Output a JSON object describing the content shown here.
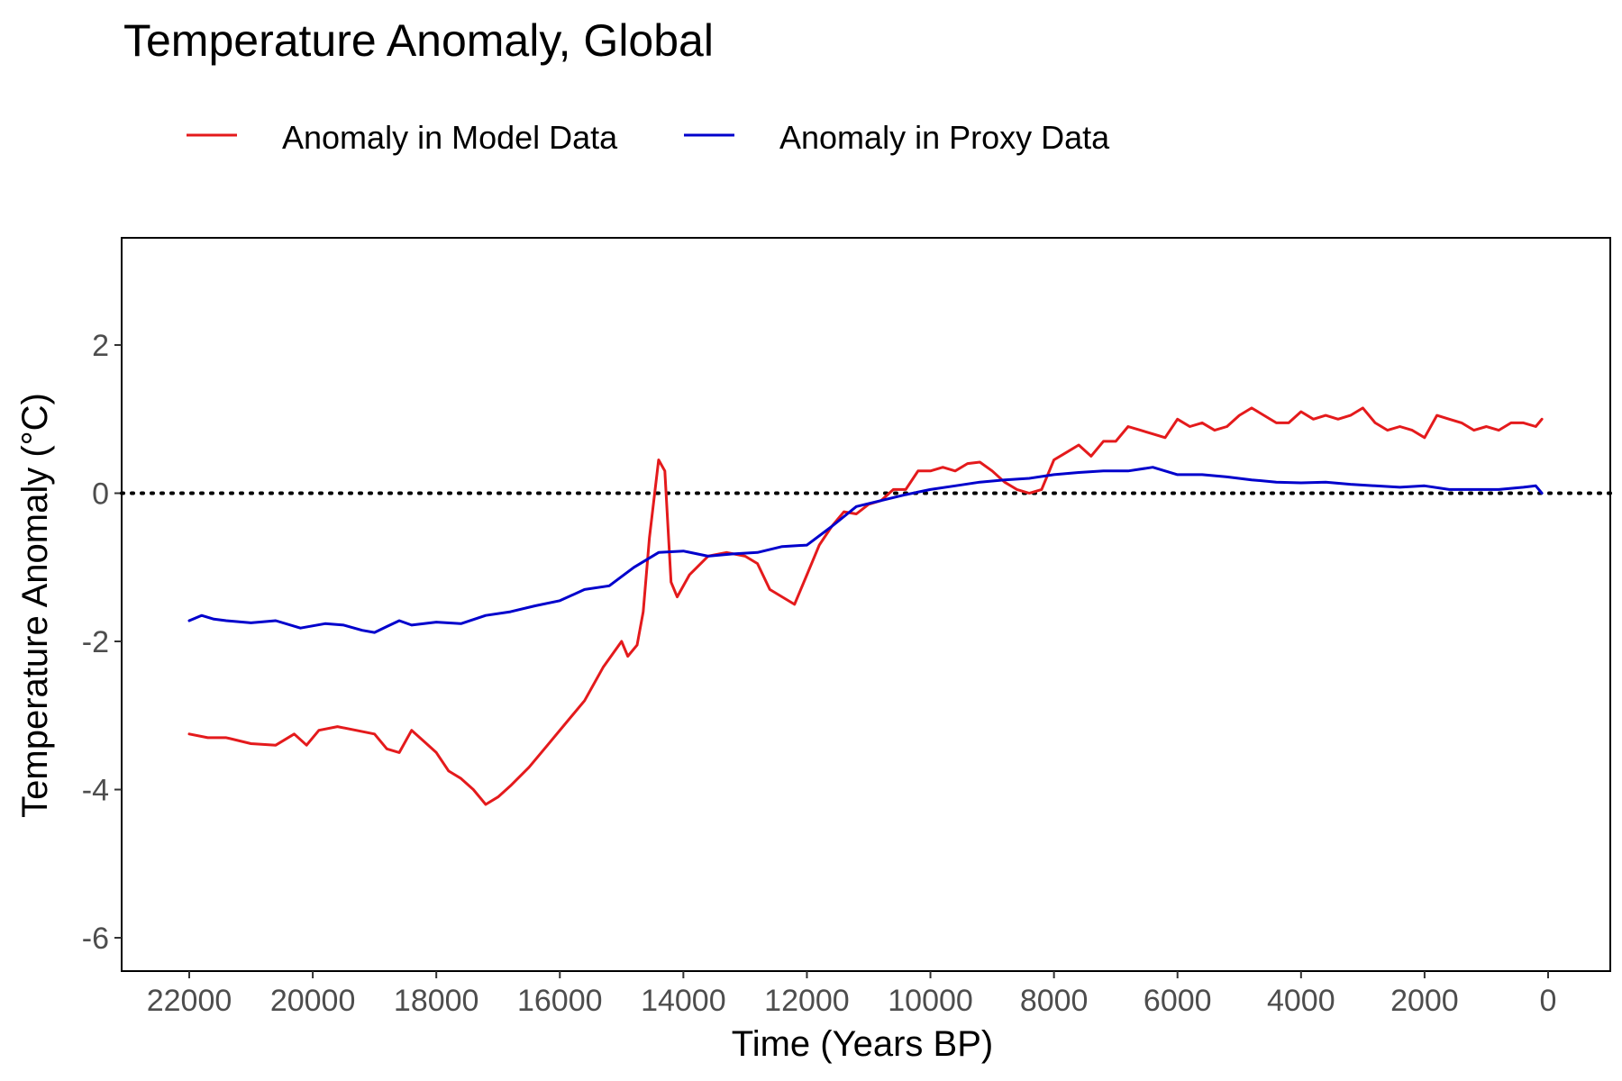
{
  "chart_data": {
    "type": "line",
    "title": "Temperature Anomaly, Global",
    "xlabel": "Time (Years BP)",
    "ylabel": "Temperature Anomaly (°C)",
    "xlim": [
      22000,
      0
    ],
    "ylim": [
      -6,
      2
    ],
    "x_reversed": true,
    "xticks": [
      22000,
      20000,
      18000,
      16000,
      14000,
      12000,
      10000,
      8000,
      6000,
      4000,
      2000,
      0
    ],
    "yticks": [
      2,
      0,
      -2,
      -4,
      -6
    ],
    "xtick_labels": [
      "22000",
      "20000",
      "18000",
      "16000",
      "14000",
      "12000",
      "10000",
      "8000",
      "6000",
      "4000",
      "2000",
      "0"
    ],
    "ytick_labels": [
      "2",
      "0",
      "-2",
      "-4",
      "-6"
    ],
    "reference_line": {
      "y": 0,
      "style": "dotted",
      "color": "#000000"
    },
    "grid": false,
    "legend": {
      "position": "top",
      "entries": [
        "Anomaly in Model Data",
        "Anomaly in Proxy Data"
      ]
    },
    "series": [
      {
        "name": "Anomaly in Model Data",
        "color": "#e41a1c",
        "points": [
          [
            22000,
            -3.25
          ],
          [
            21700,
            -3.3
          ],
          [
            21400,
            -3.3
          ],
          [
            21000,
            -3.38
          ],
          [
            20600,
            -3.4
          ],
          [
            20300,
            -3.25
          ],
          [
            20100,
            -3.4
          ],
          [
            19900,
            -3.2
          ],
          [
            19600,
            -3.15
          ],
          [
            19300,
            -3.2
          ],
          [
            19000,
            -3.25
          ],
          [
            18800,
            -3.45
          ],
          [
            18600,
            -3.5
          ],
          [
            18400,
            -3.2
          ],
          [
            18200,
            -3.35
          ],
          [
            18000,
            -3.5
          ],
          [
            17800,
            -3.75
          ],
          [
            17600,
            -3.85
          ],
          [
            17400,
            -4.0
          ],
          [
            17200,
            -4.2
          ],
          [
            17000,
            -4.1
          ],
          [
            16800,
            -3.95
          ],
          [
            16500,
            -3.7
          ],
          [
            16200,
            -3.4
          ],
          [
            15900,
            -3.1
          ],
          [
            15600,
            -2.8
          ],
          [
            15300,
            -2.35
          ],
          [
            15000,
            -2.0
          ],
          [
            14900,
            -2.2
          ],
          [
            14750,
            -2.05
          ],
          [
            14650,
            -1.6
          ],
          [
            14550,
            -0.6
          ],
          [
            14400,
            0.45
          ],
          [
            14300,
            0.3
          ],
          [
            14200,
            -1.2
          ],
          [
            14100,
            -1.4
          ],
          [
            13900,
            -1.1
          ],
          [
            13600,
            -0.85
          ],
          [
            13300,
            -0.8
          ],
          [
            13000,
            -0.85
          ],
          [
            12800,
            -0.95
          ],
          [
            12600,
            -1.3
          ],
          [
            12400,
            -1.4
          ],
          [
            12200,
            -1.5
          ],
          [
            12000,
            -1.1
          ],
          [
            11800,
            -0.7
          ],
          [
            11600,
            -0.45
          ],
          [
            11400,
            -0.25
          ],
          [
            11200,
            -0.28
          ],
          [
            11000,
            -0.15
          ],
          [
            10800,
            -0.1
          ],
          [
            10600,
            0.05
          ],
          [
            10400,
            0.05
          ],
          [
            10200,
            0.3
          ],
          [
            10000,
            0.3
          ],
          [
            9800,
            0.35
          ],
          [
            9600,
            0.3
          ],
          [
            9400,
            0.4
          ],
          [
            9200,
            0.42
          ],
          [
            9000,
            0.3
          ],
          [
            8800,
            0.15
          ],
          [
            8600,
            0.05
          ],
          [
            8400,
            0.0
          ],
          [
            8200,
            0.05
          ],
          [
            8000,
            0.45
          ],
          [
            7800,
            0.55
          ],
          [
            7600,
            0.65
          ],
          [
            7400,
            0.5
          ],
          [
            7200,
            0.7
          ],
          [
            7000,
            0.7
          ],
          [
            6800,
            0.9
          ],
          [
            6600,
            0.85
          ],
          [
            6400,
            0.8
          ],
          [
            6200,
            0.75
          ],
          [
            6000,
            1.0
          ],
          [
            5800,
            0.9
          ],
          [
            5600,
            0.95
          ],
          [
            5400,
            0.85
          ],
          [
            5200,
            0.9
          ],
          [
            5000,
            1.05
          ],
          [
            4800,
            1.15
          ],
          [
            4600,
            1.05
          ],
          [
            4400,
            0.95
          ],
          [
            4200,
            0.95
          ],
          [
            4000,
            1.1
          ],
          [
            3800,
            1.0
          ],
          [
            3600,
            1.05
          ],
          [
            3400,
            1.0
          ],
          [
            3200,
            1.05
          ],
          [
            3000,
            1.15
          ],
          [
            2800,
            0.95
          ],
          [
            2600,
            0.85
          ],
          [
            2400,
            0.9
          ],
          [
            2200,
            0.85
          ],
          [
            2000,
            0.75
          ],
          [
            1800,
            1.05
          ],
          [
            1600,
            1.0
          ],
          [
            1400,
            0.95
          ],
          [
            1200,
            0.85
          ],
          [
            1000,
            0.9
          ],
          [
            800,
            0.85
          ],
          [
            600,
            0.95
          ],
          [
            400,
            0.95
          ],
          [
            200,
            0.9
          ],
          [
            100,
            1.0
          ]
        ]
      },
      {
        "name": "Anomaly in Proxy Data",
        "color": "#0000cc",
        "points": [
          [
            22000,
            -1.72
          ],
          [
            21800,
            -1.65
          ],
          [
            21600,
            -1.7
          ],
          [
            21400,
            -1.72
          ],
          [
            21000,
            -1.75
          ],
          [
            20600,
            -1.72
          ],
          [
            20200,
            -1.82
          ],
          [
            19800,
            -1.76
          ],
          [
            19500,
            -1.78
          ],
          [
            19200,
            -1.85
          ],
          [
            19000,
            -1.88
          ],
          [
            18800,
            -1.8
          ],
          [
            18600,
            -1.72
          ],
          [
            18400,
            -1.78
          ],
          [
            18000,
            -1.74
          ],
          [
            17600,
            -1.76
          ],
          [
            17200,
            -1.65
          ],
          [
            16800,
            -1.6
          ],
          [
            16400,
            -1.52
          ],
          [
            16000,
            -1.45
          ],
          [
            15600,
            -1.3
          ],
          [
            15200,
            -1.25
          ],
          [
            14800,
            -1.0
          ],
          [
            14400,
            -0.8
          ],
          [
            14000,
            -0.78
          ],
          [
            13600,
            -0.85
          ],
          [
            13200,
            -0.82
          ],
          [
            12800,
            -0.8
          ],
          [
            12400,
            -0.72
          ],
          [
            12000,
            -0.7
          ],
          [
            11600,
            -0.45
          ],
          [
            11200,
            -0.18
          ],
          [
            10800,
            -0.1
          ],
          [
            10400,
            -0.02
          ],
          [
            10000,
            0.05
          ],
          [
            9600,
            0.1
          ],
          [
            9200,
            0.15
          ],
          [
            8800,
            0.18
          ],
          [
            8400,
            0.2
          ],
          [
            8000,
            0.25
          ],
          [
            7600,
            0.28
          ],
          [
            7200,
            0.3
          ],
          [
            6800,
            0.3
          ],
          [
            6400,
            0.35
          ],
          [
            6000,
            0.25
          ],
          [
            5600,
            0.25
          ],
          [
            5200,
            0.22
          ],
          [
            4800,
            0.18
          ],
          [
            4400,
            0.15
          ],
          [
            4000,
            0.14
          ],
          [
            3600,
            0.15
          ],
          [
            3200,
            0.12
          ],
          [
            2800,
            0.1
          ],
          [
            2400,
            0.08
          ],
          [
            2000,
            0.1
          ],
          [
            1600,
            0.05
          ],
          [
            1200,
            0.05
          ],
          [
            800,
            0.05
          ],
          [
            400,
            0.08
          ],
          [
            200,
            0.1
          ],
          [
            100,
            0.0
          ]
        ]
      }
    ]
  }
}
